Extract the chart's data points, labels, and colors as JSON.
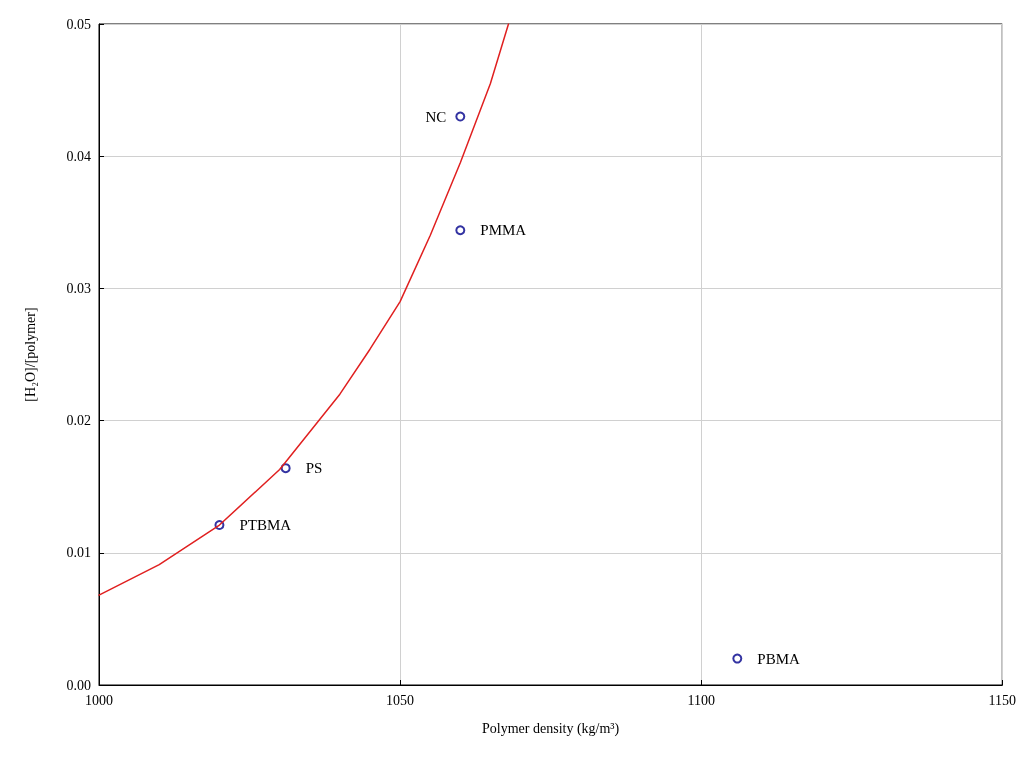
{
  "chart_data": {
    "type": "scatter",
    "xlabel": "Polymer density (kg/m³)",
    "ylabel": "[H₂O]/[polymer]",
    "xlim": [
      1000,
      1150
    ],
    "xticks": [
      1000,
      1050,
      1100,
      1150
    ],
    "ylim": [
      0,
      0.05
    ],
    "yticks": [
      {
        "value": 0,
        "label": "0.00"
      },
      {
        "value": 0.01,
        "label": "0.01"
      },
      {
        "value": 0.02,
        "label": "0.02"
      },
      {
        "value": 0.03,
        "label": "0.03"
      },
      {
        "value": 0.04,
        "label": "0.04"
      },
      {
        "value": 0.05,
        "label": "0.05"
      }
    ],
    "grid": true,
    "series": [
      {
        "color": "#00008b",
        "marker": "circle",
        "x": [
          1060,
          1060,
          1031,
          1020,
          1106
        ],
        "values": [
          0.043,
          0.0344,
          0.0164,
          0.0121,
          0.002
        ]
      },
      {
        "type": "line",
        "color": "#e02020",
        "marker": "none",
        "line_style": "solid",
        "x": [
          1000,
          1010,
          1020,
          1030,
          1040,
          1045,
          1050,
          1055,
          1060,
          1065,
          1068
        ],
        "values": [
          0.0068,
          0.0091,
          0.0121,
          0.0163,
          0.022,
          0.0254,
          0.029,
          0.034,
          0.0395,
          0.0455,
          0.05
        ]
      }
    ],
    "annotations": [
      {
        "text": "NC",
        "x": 1060,
        "y": 0.043
      },
      {
        "text": "PMMA",
        "x": 1060,
        "y": 0.0344
      },
      {
        "text": "PS",
        "x": 1031,
        "y": 0.0164
      },
      {
        "text": "PTBMA",
        "x": 1020,
        "y": 0.0121
      },
      {
        "text": "PBMA",
        "x": 1106,
        "y": 0.002
      }
    ]
  }
}
